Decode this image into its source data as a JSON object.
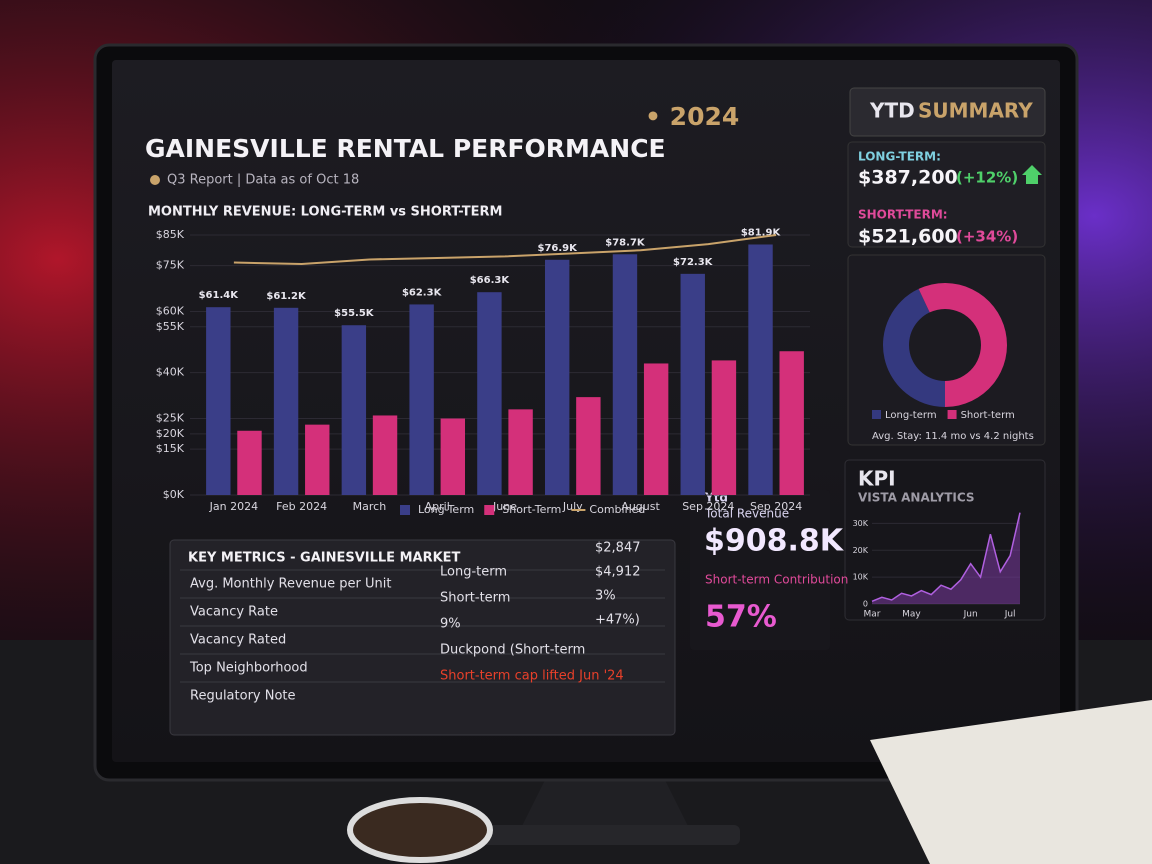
{
  "header": {
    "title": "GAINESVILLE RENTAL PERFORMANCE",
    "year": "• 2024",
    "subtitle": "Q3 Report | Data as of Oct 18"
  },
  "chart_data": [
    {
      "type": "bar",
      "title": "MONTHLY REVENUE: LONG-TERM vs SHORT-TERM",
      "categories": [
        "Jan 2024",
        "Feb 2024",
        "March",
        "April",
        "June",
        "July",
        "August",
        "Sep 2024",
        "Sep 2024"
      ],
      "series": [
        {
          "name": "Long-Term",
          "color": "#3a3e88",
          "values": [
            61.4,
            61.2,
            55.5,
            62.3,
            66.3,
            76.9,
            78.7,
            72.3,
            81.9
          ],
          "value_labels": [
            "$61.4K",
            "$61.2K",
            "$55.5K",
            "$62.3K",
            "$66.3K",
            "$76.9K",
            "$78.7K",
            "$72.3K",
            "$81.9K"
          ]
        },
        {
          "name": "Short-Term",
          "color": "#d4307a",
          "values": [
            21,
            23,
            26,
            25,
            28,
            32,
            43,
            44,
            47
          ]
        },
        {
          "name": "Combined",
          "type": "line",
          "color": "#c9a36a",
          "values": [
            76,
            75.5,
            77,
            77.5,
            78,
            79,
            80,
            82,
            85
          ]
        }
      ],
      "ylim": [
        0,
        85
      ],
      "yticks": [
        {
          "value": 0,
          "label": "$0K"
        },
        {
          "value": 15,
          "label": "$15K"
        },
        {
          "value": 20,
          "label": "$20K"
        },
        {
          "value": 25,
          "label": "$25K"
        },
        {
          "value": 40,
          "label": "$40K"
        },
        {
          "value": 55,
          "label": "$55K"
        },
        {
          "value": 60,
          "label": "$60K"
        },
        {
          "value": 75,
          "label": "$75K"
        },
        {
          "value": 85,
          "label": "$85K"
        }
      ]
    },
    {
      "type": "donut",
      "categories": [
        "Long-term",
        "Short-term"
      ],
      "values": [
        43,
        57
      ],
      "colors": [
        "#34397f",
        "#d4307a"
      ],
      "note": "Avg. Stay: 11.4 mo vs 4.2 nights"
    },
    {
      "type": "area",
      "title": "KPI",
      "subtitle": "VISTA ANALYTICS",
      "color": "#7a3a9e",
      "categories": [
        "Mar",
        null,
        null,
        null,
        "May",
        null,
        null,
        null,
        null,
        null,
        "Jun",
        null,
        null,
        null,
        "Jul",
        null
      ],
      "values": [
        1000,
        2500,
        1500,
        4000,
        3000,
        5000,
        3500,
        7000,
        5500,
        9000,
        15000,
        10000,
        26000,
        12000,
        18000,
        34000
      ],
      "ylim": [
        0,
        35000
      ],
      "yticks": [
        0,
        {
          "value": 10000,
          "label": "10K"
        },
        {
          "value": 20000,
          "label": "20K"
        },
        {
          "value": 30000,
          "label": "30K"
        }
      ]
    }
  ],
  "ytd": {
    "title": "YTD",
    "title_accent": "SUMMARY",
    "long_label": "LONG-TERM:",
    "long_value": "$387,200",
    "long_change": "(+12%)",
    "short_label": "SHORT-TERM:",
    "short_value": "$521,600",
    "short_change": "(+34%)"
  },
  "totals": {
    "tag": "Ytd",
    "label": "Total Revenue",
    "value": "$908.8K",
    "contribution_label": "Short-term Contribution",
    "contribution_value": "57%"
  },
  "key_metrics": {
    "title": "KEY METRICS - GAINESVILLE MARKET",
    "labels": [
      "Avg. Monthly Revenue per Unit",
      "Vacancy Rate",
      "Vacancy Rated",
      "Top Neighborhood",
      "Regulatory Note"
    ],
    "col2": [
      "Long-term",
      "Short-term",
      "9%",
      "Duckpond (Short-term",
      "Short-term cap lifted Jun '24"
    ],
    "col3": [
      "$2,847",
      "$4,912",
      "3%",
      "+47%)"
    ]
  }
}
